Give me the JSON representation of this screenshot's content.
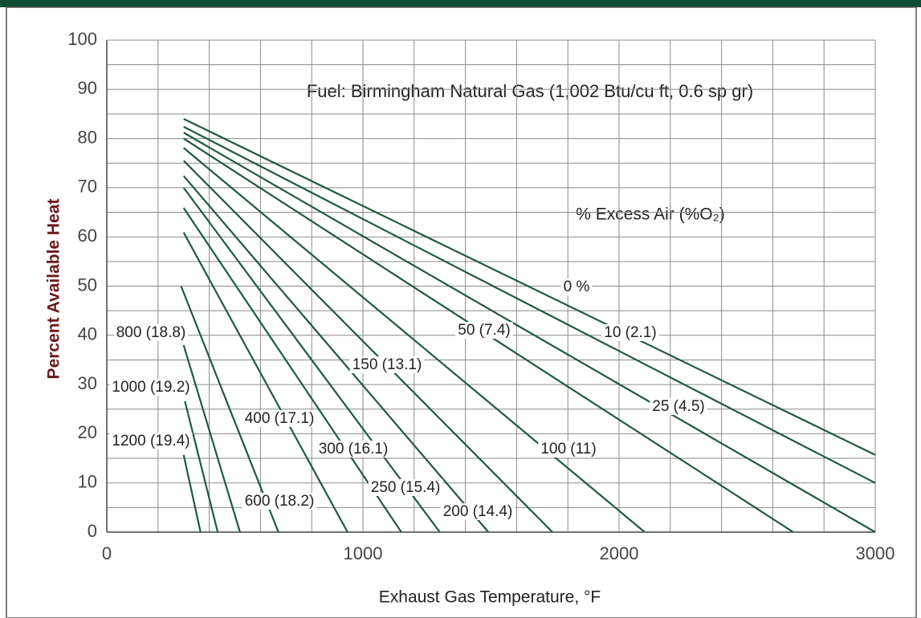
{
  "chart_data": {
    "type": "line",
    "annotations": [
      "Fuel: Birmingham Natural Gas (1,002 Btu/cu ft, 0.6 sp gr)",
      "% Excess Air (%O₂)"
    ],
    "x_label": "Exhaust Gas Temperature, °F",
    "y_label": "Percent Available Heat",
    "xlim": [
      0,
      3000
    ],
    "ylim": [
      0,
      100
    ],
    "xticks": [
      0,
      1000,
      2000,
      3000
    ],
    "yticks": [
      0,
      10,
      20,
      30,
      40,
      50,
      60,
      70,
      80,
      90,
      100
    ],
    "x_minor_ticks": [
      200,
      400,
      600,
      800,
      1200,
      1400,
      1600,
      1800,
      2200,
      2400,
      2600,
      2800
    ],
    "y_minor_ticks": [
      5,
      15,
      25,
      35,
      45,
      55,
      65,
      75,
      85,
      95
    ],
    "grid": true,
    "color": "#1f5a3c",
    "series": [
      {
        "name": "0 %",
        "x": [
          300,
          3000
        ],
        "values": [
          84,
          15.7
        ]
      },
      {
        "name": "10 (2.1)",
        "x": [
          300,
          3000
        ],
        "values": [
          82.4,
          10
        ]
      },
      {
        "name": "25 (4.5)",
        "x": [
          300,
          3000
        ],
        "values": [
          81.2,
          0
        ]
      },
      {
        "name": "50 (7.4)",
        "x": [
          300,
          2680
        ],
        "values": [
          80,
          0
        ]
      },
      {
        "name": "100 (11)",
        "x": [
          300,
          2100
        ],
        "values": [
          78.1,
          0
        ]
      },
      {
        "name": "150 (13.1)",
        "x": [
          300,
          1740
        ],
        "values": [
          75.5,
          0
        ]
      },
      {
        "name": "200 (14.4)",
        "x": [
          300,
          1490
        ],
        "values": [
          72.4,
          0
        ]
      },
      {
        "name": "250 (15.4)",
        "x": [
          300,
          1300
        ],
        "values": [
          70,
          0
        ]
      },
      {
        "name": "300 (16.1)",
        "x": [
          300,
          1150
        ],
        "values": [
          65.9,
          0
        ]
      },
      {
        "name": "400 (17.1)",
        "x": [
          300,
          940
        ],
        "values": [
          60.9,
          0
        ]
      },
      {
        "name": "600 (18.2)",
        "x": [
          290,
          670
        ],
        "values": [
          50,
          0
        ]
      },
      {
        "name": "800 (18.8)",
        "x": [
          300,
          520
        ],
        "values": [
          38,
          0
        ]
      },
      {
        "name": "1000 (19.2)",
        "x": [
          305,
          433
        ],
        "values": [
          26.6,
          0
        ]
      },
      {
        "name": "1200 (19.4)",
        "x": [
          300,
          366
        ],
        "values": [
          15.7,
          0
        ]
      }
    ]
  }
}
